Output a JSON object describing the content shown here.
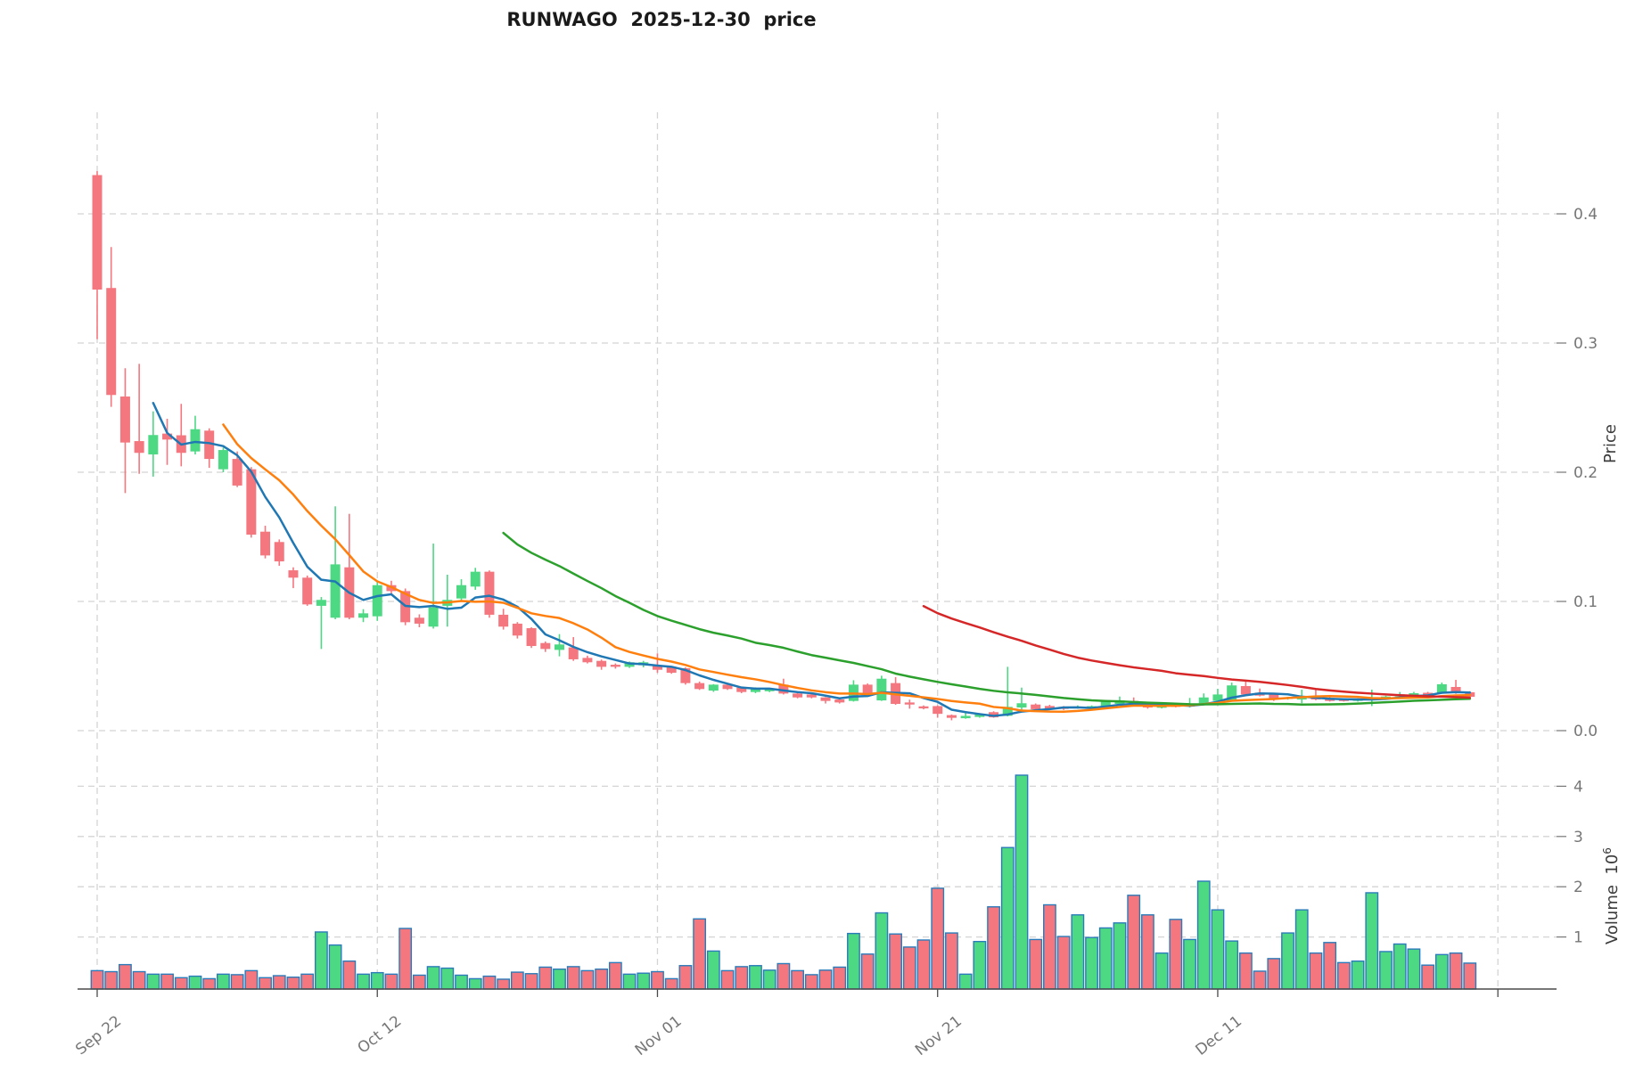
{
  "title": "RUNWAGO  2025-12-30  price",
  "chart_data": {
    "type": "candlestick",
    "symbol": "RUNWAGO",
    "as_of_date": "2025-12-30",
    "start_date": "2025-09-22",
    "grid": true,
    "legend_position": "none",
    "x_ticks": [
      {
        "day": 0,
        "label": "Sep 22"
      },
      {
        "day": 20,
        "label": "Oct 12"
      },
      {
        "day": 40,
        "label": "Nov 01"
      },
      {
        "day": 60,
        "label": "Nov 21"
      },
      {
        "day": 80,
        "label": "Dec 11"
      },
      {
        "day": 100,
        "label": ""
      }
    ],
    "price_axis": {
      "label": "Price",
      "ticks": [
        0.0,
        0.1,
        0.2,
        0.3,
        0.4
      ],
      "ylim": [
        -0.014,
        0.479
      ]
    },
    "volume_axis": {
      "label": "Volume",
      "scale_base": "10",
      "scale_exp": "6",
      "ticks": [
        1,
        2,
        3,
        4
      ],
      "ylim": [
        0,
        4.65
      ]
    },
    "moving_averages": [
      {
        "name": "SMA5",
        "period": 5,
        "color": "#1f77b4"
      },
      {
        "name": "SMA10",
        "period": 10,
        "color": "#ff7f0e"
      },
      {
        "name": "SMA30",
        "period": 30,
        "color": "#2ca02c"
      },
      {
        "name": "SMA60",
        "period": 60,
        "color": "#d62728"
      }
    ],
    "colors": {
      "up": "#4dd983",
      "down": "#f4777f",
      "volume_edge": "#2b7bba",
      "grid": "#d4d4d4",
      "tick_label": "#767676",
      "spine": "#4a4a4a",
      "title": "#1a1a1a"
    },
    "ohlc": {
      "open": [
        0.43,
        0.3426,
        0.2586,
        0.2241,
        0.2138,
        0.2299,
        0.2286,
        0.2161,
        0.2322,
        0.2023,
        0.2103,
        0.2023,
        0.154,
        0.146,
        0.1241,
        0.1184,
        0.0966,
        0.0874,
        0.1264,
        0.0874,
        0.0885,
        0.1126,
        0.108,
        0.0874,
        0.0805,
        0.0966,
        0.1023,
        0.1115,
        0.123,
        0.0897,
        0.0828,
        0.0793,
        0.0678,
        0.0625,
        0.0644,
        0.0563,
        0.054,
        0.051,
        0.0494,
        0.0506,
        0.0506,
        0.0494,
        0.0483,
        0.0368,
        0.031,
        0.0356,
        0.0333,
        0.0299,
        0.0305,
        0.0356,
        0.0287,
        0.028,
        0.0257,
        0.0241,
        0.023,
        0.0356,
        0.0234,
        0.0368,
        0.0218,
        0.0188,
        0.019,
        0.012,
        0.0096,
        0.0106,
        0.0143,
        0.0115,
        0.0179,
        0.0202,
        0.0191,
        0.0184,
        0.0175,
        0.0177,
        0.0179,
        0.0207,
        0.023,
        0.0195,
        0.0177,
        0.0198,
        0.0186,
        0.0212,
        0.023,
        0.0234,
        0.0345,
        0.0294,
        0.028,
        0.0248,
        0.0241,
        0.0264,
        0.0253,
        0.024,
        0.023,
        0.0241,
        0.0248,
        0.0264,
        0.027,
        0.0293,
        0.029,
        0.0338,
        0.0297
      ],
      "high": [
        0.433,
        0.3743,
        0.2805,
        0.2839,
        0.2471,
        0.2414,
        0.2529,
        0.2437,
        0.234,
        0.219,
        0.2161,
        0.204,
        0.1586,
        0.148,
        0.1264,
        0.12,
        0.1034,
        0.1736,
        0.1678,
        0.094,
        0.115,
        0.116,
        0.11,
        0.09,
        0.1448,
        0.1207,
        0.1172,
        0.126,
        0.124,
        0.0943,
        0.084,
        0.08,
        0.069,
        0.0747,
        0.0724,
        0.058,
        0.055,
        0.052,
        0.0535,
        0.054,
        0.0598,
        0.05,
        0.049,
        0.038,
        0.036,
        0.0365,
        0.034,
        0.0335,
        0.033,
        0.0402,
        0.0295,
        0.0285,
        0.026,
        0.025,
        0.039,
        0.0365,
        0.0425,
        0.0414,
        0.024,
        0.0195,
        0.0195,
        0.0125,
        0.015,
        0.013,
        0.015,
        0.0494,
        0.0333,
        0.021,
        0.02,
        0.019,
        0.0195,
        0.0195,
        0.0235,
        0.0264,
        0.0257,
        0.02,
        0.02,
        0.021,
        0.0253,
        0.0288,
        0.0324,
        0.0372,
        0.038,
        0.0326,
        0.0285,
        0.0262,
        0.0317,
        0.0322,
        0.026,
        0.0245,
        0.025,
        0.0317,
        0.027,
        0.0299,
        0.03,
        0.03,
        0.0372,
        0.0393,
        0.0305
      ],
      "low": [
        0.303,
        0.2506,
        0.1839,
        0.1988,
        0.1966,
        0.2057,
        0.2046,
        0.2138,
        0.2034,
        0.2,
        0.1885,
        0.1494,
        0.1333,
        0.1276,
        0.1103,
        0.0966,
        0.0632,
        0.0862,
        0.0862,
        0.084,
        0.085,
        0.105,
        0.0816,
        0.08,
        0.079,
        0.0805,
        0.1,
        0.109,
        0.0874,
        0.0782,
        0.0713,
        0.064,
        0.0609,
        0.0575,
        0.054,
        0.052,
        0.0471,
        0.048,
        0.0485,
        0.049,
        0.0448,
        0.044,
        0.0356,
        0.0315,
        0.03,
        0.0315,
        0.029,
        0.029,
        0.0298,
        0.028,
        0.025,
        0.025,
        0.021,
        0.021,
        0.0225,
        0.027,
        0.023,
        0.02,
        0.017,
        0.0165,
        0.01,
        0.008,
        0.0092,
        0.01,
        0.01,
        0.011,
        0.0161,
        0.015,
        0.016,
        0.016,
        0.017,
        0.017,
        0.0175,
        0.02,
        0.0195,
        0.017,
        0.0172,
        0.018,
        0.018,
        0.0205,
        0.0225,
        0.023,
        0.0275,
        0.0265,
        0.023,
        0.024,
        0.0212,
        0.0235,
        0.0225,
        0.0225,
        0.0225,
        0.019,
        0.0245,
        0.026,
        0.0265,
        0.0265,
        0.0285,
        0.0285,
        0.0255
      ],
      "close": [
        0.3414,
        0.2598,
        0.223,
        0.215,
        0.2288,
        0.2253,
        0.215,
        0.2333,
        0.2103,
        0.2172,
        0.1897,
        0.1517,
        0.1356,
        0.131,
        0.1184,
        0.0977,
        0.1012,
        0.1287,
        0.0874,
        0.0908,
        0.1126,
        0.108,
        0.0839,
        0.0828,
        0.0954,
        0.1012,
        0.1126,
        0.123,
        0.0897,
        0.0805,
        0.0736,
        0.0655,
        0.0632,
        0.0667,
        0.0552,
        0.0529,
        0.0494,
        0.0494,
        0.0529,
        0.0529,
        0.0471,
        0.0448,
        0.0368,
        0.0322,
        0.0356,
        0.0322,
        0.0299,
        0.0326,
        0.0322,
        0.0287,
        0.0257,
        0.0257,
        0.023,
        0.0218,
        0.0356,
        0.0278,
        0.0402,
        0.0207,
        0.0202,
        0.0172,
        0.013,
        0.0099,
        0.0114,
        0.0125,
        0.0103,
        0.0184,
        0.0212,
        0.0166,
        0.0168,
        0.0168,
        0.0186,
        0.0189,
        0.0225,
        0.0234,
        0.0202,
        0.0179,
        0.0193,
        0.0184,
        0.0205,
        0.0257,
        0.028,
        0.035,
        0.028,
        0.0271,
        0.0248,
        0.0257,
        0.0257,
        0.0241,
        0.023,
        0.023,
        0.0248,
        0.0257,
        0.0264,
        0.0281,
        0.029,
        0.0272,
        0.0359,
        0.029,
        0.0262
      ]
    },
    "volume_millions": [
      0.33,
      0.31,
      0.45,
      0.31,
      0.26,
      0.26,
      0.19,
      0.22,
      0.17,
      0.26,
      0.25,
      0.33,
      0.19,
      0.23,
      0.2,
      0.26,
      1.1,
      0.84,
      0.52,
      0.26,
      0.29,
      0.26,
      1.17,
      0.24,
      0.41,
      0.38,
      0.24,
      0.17,
      0.22,
      0.16,
      0.3,
      0.27,
      0.4,
      0.36,
      0.41,
      0.33,
      0.36,
      0.49,
      0.26,
      0.28,
      0.31,
      0.17,
      0.43,
      1.36,
      0.72,
      0.33,
      0.41,
      0.43,
      0.34,
      0.47,
      0.33,
      0.25,
      0.34,
      0.4,
      1.07,
      0.66,
      1.48,
      1.06,
      0.8,
      0.94,
      1.97,
      1.08,
      0.26,
      0.91,
      1.6,
      2.78,
      4.22,
      0.95,
      1.64,
      1.01,
      1.44,
      0.99,
      1.18,
      1.28,
      1.83,
      1.44,
      0.68,
      1.35,
      0.95,
      2.11,
      1.54,
      0.92,
      0.68,
      0.32,
      0.57,
      1.08,
      1.54,
      0.68,
      0.89,
      0.49,
      0.52,
      1.88,
      0.71,
      0.86,
      0.76,
      0.44,
      0.65,
      0.68,
      0.48
    ]
  }
}
